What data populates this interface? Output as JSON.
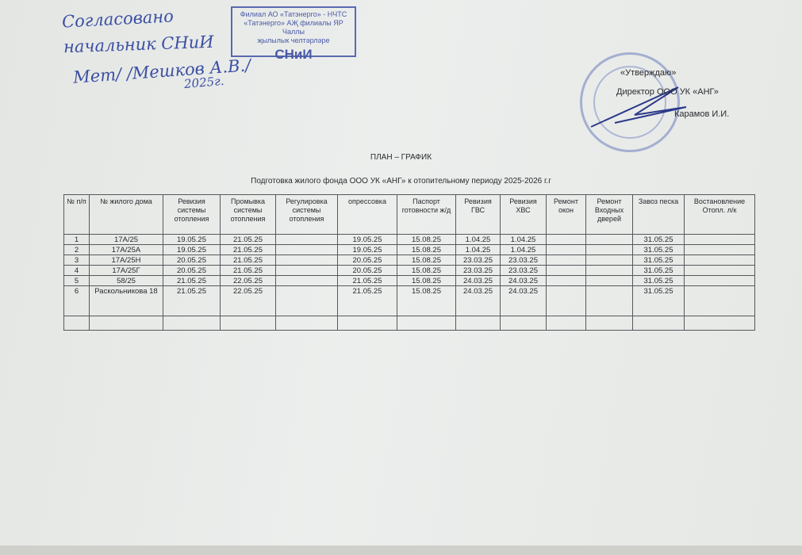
{
  "approval_left": {
    "line1": "Согласовано",
    "line2": "начальник СНиИ",
    "line3": "Мет/ /Мешков А.В./",
    "line4": "2025г."
  },
  "stamp": {
    "line1": "Филиал АО «Татэнерго» - НЧТС",
    "line2": "«Татэнерго» АҖ филиалы ЯР Чаллы",
    "line3": "җылылык челтәрләре",
    "line4": "СНиИ"
  },
  "approval_right": {
    "approve": "«Утверждаю»",
    "position": "Директор ООО УК «АНГ»",
    "name": "Карамов И.И."
  },
  "title": "ПЛАН – ГРАФИК",
  "subtitle": "Подготовка жилого фонда ООО УК «АНГ» к отопительному периоду 2025-2026 г.г",
  "table": {
    "headers": [
      "№ п/п",
      "№ жилого дома",
      "Ревизия системы отопления",
      "Промывка системы отопления",
      "Регулировка системы отопления",
      "опрессовка",
      "Паспорт готовности ж/д",
      "Ревизия ГВС",
      "Ревизия ХВС",
      "Ремонт окон",
      "Ремонт Входных дверей",
      "Завоз песка",
      "Востановление Отопл. л/к"
    ],
    "rows": [
      [
        "1",
        "17А/25",
        "19.05.25",
        "21.05.25",
        "",
        "19.05.25",
        "15.08.25",
        "1.04.25",
        "1.04.25",
        "",
        "",
        "31.05.25",
        ""
      ],
      [
        "2",
        "17А/25А",
        "19.05.25",
        "21.05.25",
        "",
        "19.05.25",
        "15.08.25",
        "1.04.25",
        "1.04.25",
        "",
        "",
        "31.05.25",
        ""
      ],
      [
        "3",
        "17А/25Н",
        "20.05.25",
        "21.05.25",
        "",
        "20.05.25",
        "15.08.25",
        "23.03.25",
        "23.03.25",
        "",
        "",
        "31.05.25",
        ""
      ],
      [
        "4",
        "17А/25Г",
        "20.05.25",
        "21.05.25",
        "",
        "20.05.25",
        "15.08.25",
        "23.03.25",
        "23.03.25",
        "",
        "",
        "31.05.25",
        ""
      ],
      [
        "5",
        "58/25",
        "21.05.25",
        "22.05.25",
        "",
        "21.05.25",
        "15.08.25",
        "24.03.25",
        "24.03.25",
        "",
        "",
        "31.05.25",
        ""
      ],
      [
        "6",
        "Раскольникова 18",
        "21.05.25",
        "22.05.25",
        "",
        "21.05.25",
        "15.08.25",
        "24.03.25",
        "24.03.25",
        "",
        "",
        "31.05.25",
        ""
      ],
      [
        "",
        "",
        "",
        "",
        "",
        "",
        "",
        "",
        "",
        "",
        "",
        "",
        ""
      ]
    ]
  }
}
